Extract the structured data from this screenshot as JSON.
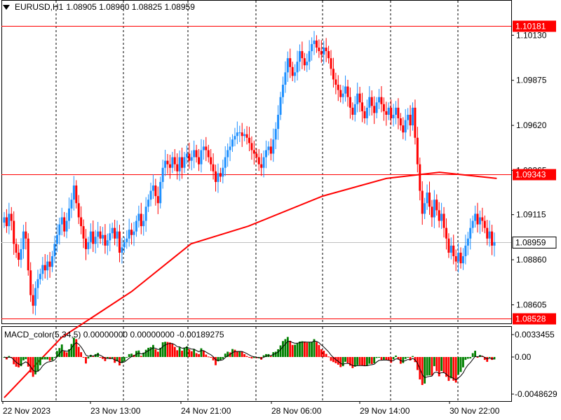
{
  "header": {
    "symbol": "EURUSD,H1",
    "ohlc": "1.08905 1.08960 1.08825 1.08959"
  },
  "macd": {
    "label": "MACD_color(5,34,5) 0.00000000 0.00000000 -0.00189275",
    "ticks": [
      "0.0033455",
      "0.00",
      "-0.0048629"
    ]
  },
  "price_axis": {
    "ticks": [
      "1.10130",
      "1.09875",
      "1.09620",
      "1.09365",
      "1.09115",
      "1.08860",
      "1.08605"
    ]
  },
  "time_axis": {
    "ticks": [
      "22 Nov 2023",
      "23 Nov 13:00",
      "24 Nov 21:00",
      "28 Nov 06:00",
      "29 Nov 14:00",
      "30 Nov 22:00"
    ]
  },
  "levels": [
    {
      "price": "1.10181",
      "kind": "hline"
    },
    {
      "price": "1.09343",
      "kind": "hline"
    },
    {
      "price": "1.08528",
      "kind": "hline"
    }
  ],
  "current_price": "1.08959",
  "colors": {
    "bull": "#1e90ff",
    "bear": "#ff0000",
    "ma": "#ff0000",
    "macd_up": "#008000",
    "macd_down": "#ff0000",
    "level": "#ff0000"
  },
  "chart_data": {
    "type": "candlestick",
    "symbol": "EURUSD",
    "timeframe": "H1",
    "ylim": [
      1.085,
      1.1025
    ],
    "moving_average": {
      "name": "",
      "points": [
        [
          0,
          1.0808
        ],
        [
          27,
          1.0842
        ],
        [
          60,
          1.0868
        ],
        [
          88,
          1.0895
        ],
        [
          115,
          1.0905
        ],
        [
          150,
          1.0922
        ],
        [
          180,
          1.0932
        ],
        [
          205,
          1.09355
        ],
        [
          232,
          1.0932
        ]
      ]
    },
    "candles_close": [
      1.091,
      1.0905,
      1.0912,
      1.0908,
      1.0895,
      1.089,
      1.0886,
      1.0892,
      1.0902,
      1.0898,
      1.088,
      1.0866,
      1.086,
      1.087,
      1.0875,
      1.0878,
      1.0883,
      1.088,
      1.0885,
      1.0882,
      1.0888,
      1.0895,
      1.09,
      1.0906,
      1.091,
      1.0902,
      1.0908,
      1.0915,
      1.092,
      1.0928,
      1.0918,
      1.091,
      1.0905,
      1.0898,
      1.0892,
      1.0896,
      1.0902,
      1.0895,
      1.0899,
      1.0902,
      1.0898,
      1.09,
      1.0894,
      1.0897,
      1.0901,
      1.0904,
      1.0898,
      1.0902,
      1.089,
      1.0893,
      1.0896,
      1.0898,
      1.0903,
      1.09,
      1.0902,
      1.0908,
      1.0912,
      1.0905,
      1.0908,
      1.0916,
      1.092,
      1.0925,
      1.0928,
      1.0922,
      1.0918,
      1.093,
      1.0938,
      1.0942,
      1.094,
      1.0938,
      1.0944,
      1.094,
      1.0936,
      1.0944,
      1.0938,
      1.0944,
      1.0946,
      1.0942,
      1.0944,
      1.0948,
      1.0944,
      1.094,
      1.0948,
      1.095,
      1.0948,
      1.0944,
      1.094,
      1.0936,
      1.093,
      1.0935,
      1.0933,
      1.0938,
      1.0944,
      1.0948,
      1.095,
      1.0954,
      1.0956,
      1.0958,
      1.0958,
      1.0956,
      1.0957,
      1.0955,
      1.0952,
      1.0948,
      1.0946,
      1.0944,
      1.094,
      1.0938,
      1.0944,
      1.0948,
      1.095,
      1.0946,
      1.0954,
      1.096,
      1.0968,
      1.0978,
      1.0985,
      1.0992,
      1.1,
      1.0995,
      1.099,
      1.0992,
      1.0998,
      1.1004,
      1.1,
      1.0996,
      1.0998,
      1.1004,
      1.1008,
      1.101,
      1.1006,
      1.1004,
      1.1002,
      1.1006,
      1.1004,
      1.1,
      1.0994,
      1.0988,
      1.0985,
      1.0982,
      1.0978,
      1.098,
      1.0984,
      1.0978,
      1.0972,
      1.0968,
      1.0974,
      1.098,
      1.0975,
      1.097,
      1.0966,
      1.0972,
      1.0978,
      1.0973,
      1.0969,
      1.0975,
      1.0978,
      1.0974,
      1.097,
      1.0968,
      1.0972,
      1.0966,
      1.0968,
      1.0972,
      1.0966,
      1.0962,
      1.0958,
      1.0965,
      1.0968,
      1.0962,
      1.0972,
      1.0955,
      1.094,
      1.0925,
      1.0912,
      1.0918,
      1.0924,
      1.0916,
      1.091,
      1.092,
      1.0914,
      1.0908,
      1.0912,
      1.0904,
      1.0898,
      1.089,
      1.0894,
      1.0888,
      1.0885,
      1.089,
      1.0884,
      1.0888,
      1.0894,
      1.0898,
      1.0904,
      1.0908,
      1.0912,
      1.0906,
      1.091,
      1.0908,
      1.0904,
      1.0898,
      1.0902,
      1.0894,
      1.0896
    ]
  }
}
